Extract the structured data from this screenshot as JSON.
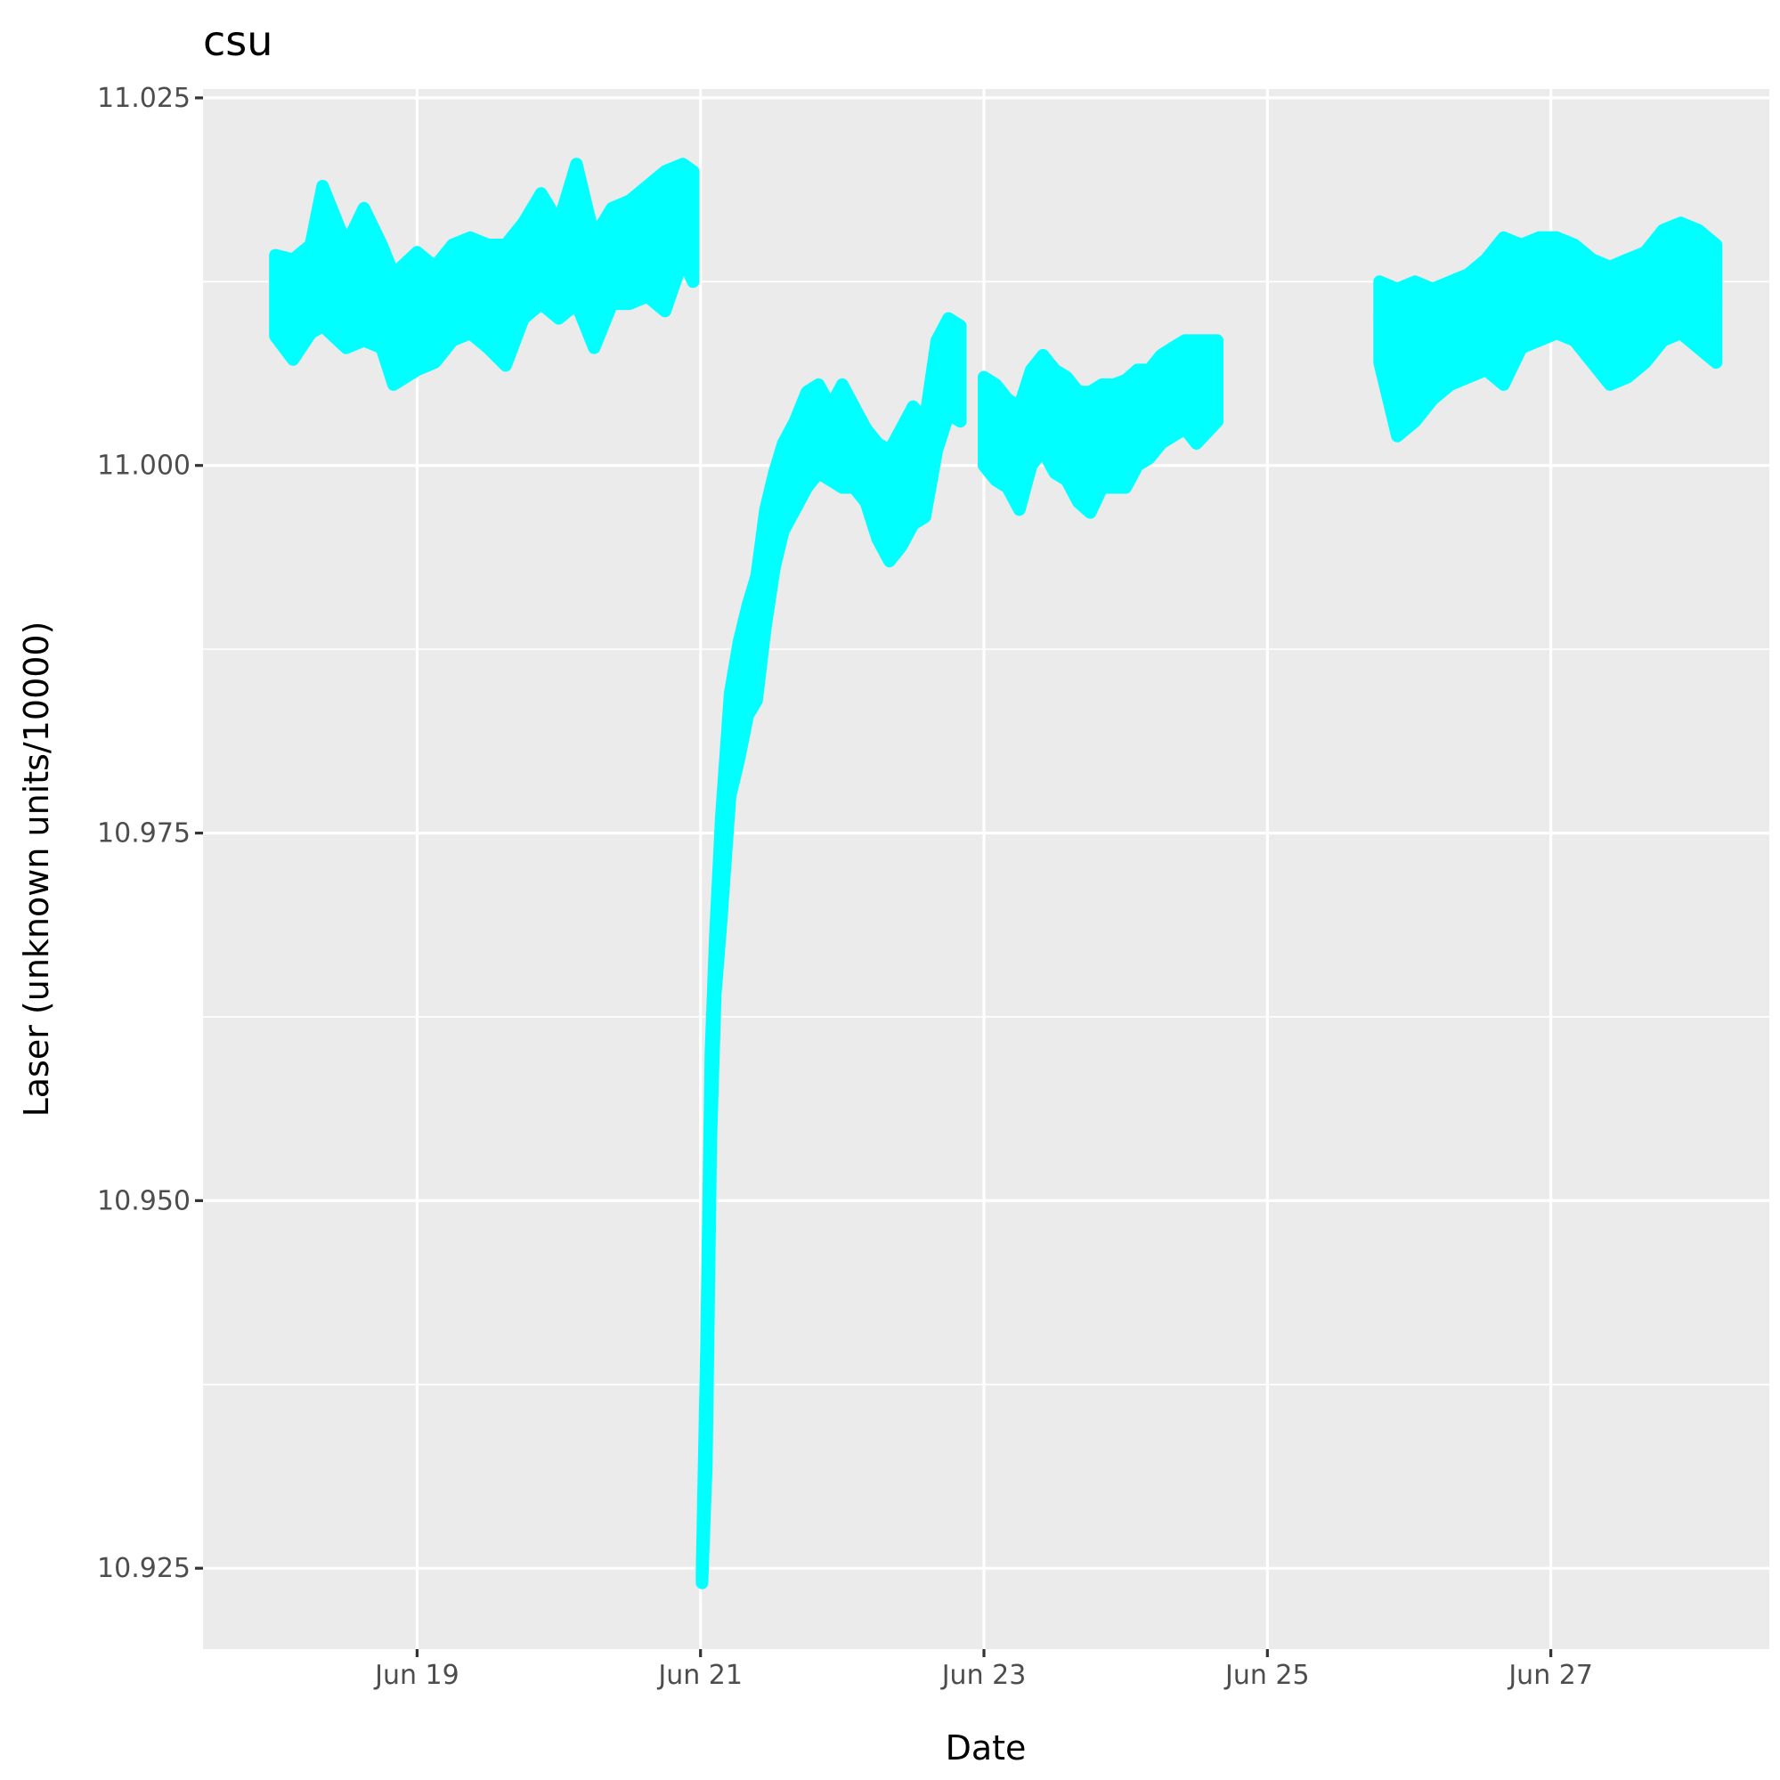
{
  "chart_data": {
    "type": "line",
    "title": "csu",
    "xlabel": "Date",
    "ylabel": "Laser (unknown units/10000)",
    "x_ticks": [
      {
        "date": "2023-06-19",
        "label": "Jun 19"
      },
      {
        "date": "2023-06-21",
        "label": "Jun 21"
      },
      {
        "date": "2023-06-23",
        "label": "Jun 23"
      },
      {
        "date": "2023-06-25",
        "label": "Jun 25"
      },
      {
        "date": "2023-06-27",
        "label": "Jun 27"
      }
    ],
    "y_ticks": [
      {
        "value": 10.925,
        "label": "10.925"
      },
      {
        "value": 10.95,
        "label": "10.950"
      },
      {
        "value": 10.975,
        "label": "10.975"
      },
      {
        "value": 11.0,
        "label": "11.000"
      },
      {
        "value": 11.025,
        "label": "11.025"
      }
    ],
    "xlim": [
      "2023-06-17T11:45",
      "2023-06-28T13:00"
    ],
    "ylim": [
      10.9195,
      11.0256
    ],
    "grid": true,
    "legend": "none",
    "colors": {
      "series": "#00ffff",
      "panel": "#ebebeb",
      "grid": "#ffffff"
    },
    "series": [
      {
        "color": "#00ffff",
        "segments": [
          [
            [
              "2023-06-18T00:00",
              11.0125,
              11.0088,
              11.0143
            ],
            [
              "2023-06-18T03:00",
              11.0118,
              11.0072,
              11.014
            ],
            [
              "2023-06-18T06:00",
              11.012,
              11.009,
              11.015
            ],
            [
              "2023-06-18T08:00",
              11.014,
              11.0095,
              11.019
            ],
            [
              "2023-06-18T12:00",
              11.012,
              11.008,
              11.015
            ],
            [
              "2023-06-18T15:00",
              11.0125,
              11.0085,
              11.0175
            ],
            [
              "2023-06-18T18:00",
              11.011,
              11.008,
              11.015
            ],
            [
              "2023-06-18T20:00",
              11.0095,
              11.0055,
              11.013
            ],
            [
              "2023-06-19T00:00",
              11.011,
              11.0065,
              11.0145
            ],
            [
              "2023-06-19T03:00",
              11.0105,
              11.007,
              11.0135
            ],
            [
              "2023-06-19T06:00",
              11.012,
              11.0085,
              11.015
            ],
            [
              "2023-06-19T09:00",
              11.0125,
              11.009,
              11.0155
            ],
            [
              "2023-06-19T12:00",
              11.012,
              11.008,
              11.015
            ],
            [
              "2023-06-19T15:00",
              11.0115,
              11.0068,
              11.015
            ],
            [
              "2023-06-19T18:00",
              11.0135,
              11.01,
              11.0165
            ],
            [
              "2023-06-19T21:00",
              11.014,
              11.011,
              11.0185
            ],
            [
              "2023-06-20T00:00",
              11.013,
              11.01,
              11.0165
            ],
            [
              "2023-06-20T03:00",
              11.015,
              11.011,
              11.0205
            ],
            [
              "2023-06-20T06:00",
              11.0135,
              11.008,
              11.0155
            ],
            [
              "2023-06-20T09:00",
              11.014,
              11.011,
              11.0175
            ],
            [
              "2023-06-20T12:00",
              11.0145,
              11.011,
              11.018
            ],
            [
              "2023-06-20T15:00",
              11.015,
              11.0115,
              11.019
            ],
            [
              "2023-06-20T18:00",
              11.0155,
              11.0105,
              11.02
            ],
            [
              "2023-06-20T21:00",
              11.017,
              11.014,
              11.0205
            ],
            [
              "2023-06-20T22:45",
              11.0165,
              11.0125,
              11.02
            ]
          ],
          [
            [
              "2023-06-21T00:15",
              10.9245,
              10.924,
              10.925
            ],
            [
              "2023-06-21T01:00",
              10.936,
              10.932,
              10.94
            ],
            [
              "2023-06-21T01:45",
              10.957,
              10.954,
              10.96
            ],
            [
              "2023-06-21T02:30",
              10.966,
              10.964,
              10.968
            ],
            [
              "2023-06-21T03:30",
              10.971,
              10.969,
              10.976
            ],
            [
              "2023-06-21T05:00",
              10.98,
              10.9775,
              10.9845
            ],
            [
              "2023-06-21T06:30",
              10.983,
              10.98,
              10.988
            ],
            [
              "2023-06-21T08:00",
              10.986,
              10.983,
              10.9905
            ],
            [
              "2023-06-21T09:30",
              10.988,
              10.984,
              10.9925
            ],
            [
              "2023-06-21T11:00",
              10.992,
              10.989,
              10.997
            ],
            [
              "2023-06-21T12:30",
              10.996,
              10.993,
              10.9995
            ],
            [
              "2023-06-21T14:00",
              10.998,
              10.9955,
              11.0015
            ],
            [
              "2023-06-21T16:00",
              11.0,
              10.997,
              11.003
            ],
            [
              "2023-06-21T18:00",
              11.001,
              10.9985,
              11.005
            ],
            [
              "2023-06-21T20:00",
              11.0025,
              10.9995,
              11.0055
            ],
            [
              "2023-06-21T22:00",
              11.0015,
              10.999,
              11.004
            ],
            [
              "2023-06-22T00:00",
              11.002,
              10.9985,
              11.0055
            ],
            [
              "2023-06-22T02:00",
              11.001,
              10.9985,
              11.004
            ],
            [
              "2023-06-22T04:00",
              11.0,
              10.9975,
              11.0025
            ],
            [
              "2023-06-22T06:00",
              10.998,
              10.995,
              11.0015
            ],
            [
              "2023-06-22T08:00",
              10.997,
              10.9935,
              11.001
            ],
            [
              "2023-06-22T10:00",
              10.9975,
              10.9945,
              11.0025
            ],
            [
              "2023-06-22T12:00",
              10.999,
              10.996,
              11.004
            ],
            [
              "2023-06-22T14:00",
              11.0,
              10.9965,
              11.003
            ],
            [
              "2023-06-22T16:00",
              11.0045,
              11.001,
              11.0085
            ],
            [
              "2023-06-22T18:00",
              11.007,
              11.0035,
              11.01
            ],
            [
              "2023-06-22T20:00",
              11.006,
              11.003,
              11.0095
            ]
          ],
          [
            [
              "2023-06-23T00:00",
              11.003,
              11.0,
              11.006
            ],
            [
              "2023-06-23T02:00",
              11.002,
              10.999,
              11.0055
            ],
            [
              "2023-06-23T04:00",
              11.0015,
              10.9985,
              11.0045
            ],
            [
              "2023-06-23T06:00",
              11.001,
              10.997,
              11.004
            ],
            [
              "2023-06-23T08:00",
              11.0035,
              11.0,
              11.0065
            ],
            [
              "2023-06-23T10:00",
              11.004,
              11.001,
              11.0075
            ],
            [
              "2023-06-23T12:00",
              11.003,
              10.9995,
              11.0065
            ],
            [
              "2023-06-23T14:00",
              11.0025,
              10.999,
              11.006
            ],
            [
              "2023-06-23T16:00",
              11.0015,
              10.9975,
              11.005
            ],
            [
              "2023-06-23T18:00",
              11.001,
              10.9968,
              11.005
            ],
            [
              "2023-06-23T20:00",
              11.0025,
              10.9985,
              11.0055
            ],
            [
              "2023-06-23T22:00",
              11.002,
              10.9985,
              11.0055
            ],
            [
              "2023-06-24T00:00",
              11.0025,
              10.9985,
              11.0058
            ],
            [
              "2023-06-24T02:00",
              11.004,
              11.0,
              11.0065
            ],
            [
              "2023-06-24T04:00",
              11.0035,
              11.0005,
              11.0065
            ],
            [
              "2023-06-24T06:00",
              11.004,
              11.0015,
              11.0075
            ],
            [
              "2023-06-24T08:00",
              11.0045,
              11.002,
              11.008
            ],
            [
              "2023-06-24T10:00",
              11.005,
              11.0025,
              11.0085
            ],
            [
              "2023-06-24T12:00",
              11.005,
              11.0015,
              11.0085
            ],
            [
              "2023-06-24T15:30",
              11.0055,
              11.003,
              11.0085
            ]
          ],
          [
            [
              "2023-06-25T19:00",
              11.01,
              11.007,
              11.0125
            ],
            [
              "2023-06-25T22:00",
              11.008,
              11.002,
              11.012
            ],
            [
              "2023-06-26T01:00",
              11.0085,
              11.003,
              11.0125
            ],
            [
              "2023-06-26T04:00",
              11.009,
              11.0045,
              11.012
            ],
            [
              "2023-06-26T07:00",
              11.0095,
              11.0055,
              11.0125
            ],
            [
              "2023-06-26T10:00",
              11.01,
              11.006,
              11.013
            ],
            [
              "2023-06-26T13:00",
              11.01,
              11.0065,
              11.014
            ],
            [
              "2023-06-26T16:00",
              11.011,
              11.0055,
              11.0155
            ],
            [
              "2023-06-26T19:00",
              11.0115,
              11.008,
              11.015
            ],
            [
              "2023-06-26T22:00",
              11.012,
              11.0085,
              11.0155
            ],
            [
              "2023-06-27T01:00",
              11.0125,
              11.009,
              11.0155
            ],
            [
              "2023-06-27T04:00",
              11.012,
              11.0085,
              11.015
            ],
            [
              "2023-06-27T07:00",
              11.011,
              11.007,
              11.014
            ],
            [
              "2023-06-27T10:00",
              11.01,
              11.0055,
              11.0135
            ],
            [
              "2023-06-27T13:00",
              11.0105,
              11.006,
              11.014
            ],
            [
              "2023-06-27T16:00",
              11.0115,
              11.007,
              11.0145
            ],
            [
              "2023-06-27T19:00",
              11.0125,
              11.0085,
              11.016
            ],
            [
              "2023-06-27T22:00",
              11.0135,
              11.009,
              11.0165
            ],
            [
              "2023-06-28T01:00",
              11.012,
              11.008,
              11.016
            ],
            [
              "2023-06-28T04:00",
              11.011,
              11.007,
              11.015
            ]
          ]
        ]
      }
    ]
  }
}
